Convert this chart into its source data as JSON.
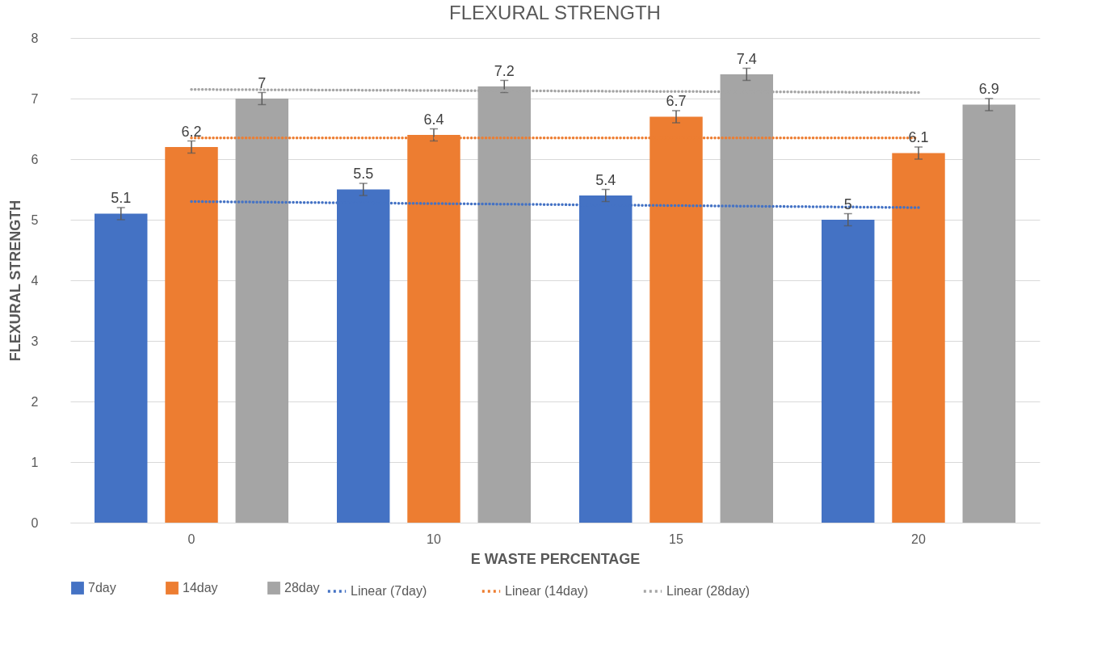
{
  "chart_data": {
    "type": "bar",
    "title": "FLEXURAL STRENGTH",
    "xlabel": "E WASTE PERCENTAGE",
    "ylabel": "FLEXURAL STRENGTH",
    "categories": [
      "0",
      "10",
      "15",
      "20"
    ],
    "series": [
      {
        "name": "7day",
        "color": "#4472c4",
        "values": [
          5.1,
          5.5,
          5.4,
          5
        ],
        "errors": [
          0.1,
          0.1,
          0.1,
          0.1
        ],
        "value_labels": [
          "5.1",
          "5.5",
          "5.4",
          "5"
        ]
      },
      {
        "name": "14day",
        "color": "#ed7d31",
        "values": [
          6.2,
          6.4,
          6.7,
          6.1
        ],
        "errors": [
          0.1,
          0.1,
          0.1,
          0.1
        ],
        "value_labels": [
          "6.2",
          "6.4",
          "6.7",
          "6.1"
        ]
      },
      {
        "name": "28day",
        "color": "#a5a5a5",
        "values": [
          7,
          7.2,
          7.4,
          6.9
        ],
        "errors": [
          0.1,
          0.1,
          0.1,
          0.1
        ],
        "value_labels": [
          "7",
          "7.2",
          "7.4",
          "6.9"
        ]
      },
      {
        "name": "Linear (7day)",
        "type": "line",
        "color": "#4472c4",
        "line_style": "dotted",
        "x": [
          "0",
          "20"
        ],
        "values": [
          5.3,
          5.2
        ]
      },
      {
        "name": "Linear (14day)",
        "type": "line",
        "color": "#ed7d31",
        "line_style": "dotted",
        "x": [
          "0",
          "20"
        ],
        "values": [
          6.35,
          6.35
        ]
      },
      {
        "name": "Linear (28day)",
        "type": "line",
        "color": "#a5a5a5",
        "line_style": "dotted",
        "x": [
          "0",
          "20"
        ],
        "values": [
          7.15,
          7.1
        ]
      }
    ],
    "ylim": [
      0,
      8
    ],
    "yticks": [
      0,
      1,
      2,
      3,
      4,
      5,
      6,
      7,
      8
    ],
    "grid": "y",
    "legend": "bottom"
  }
}
